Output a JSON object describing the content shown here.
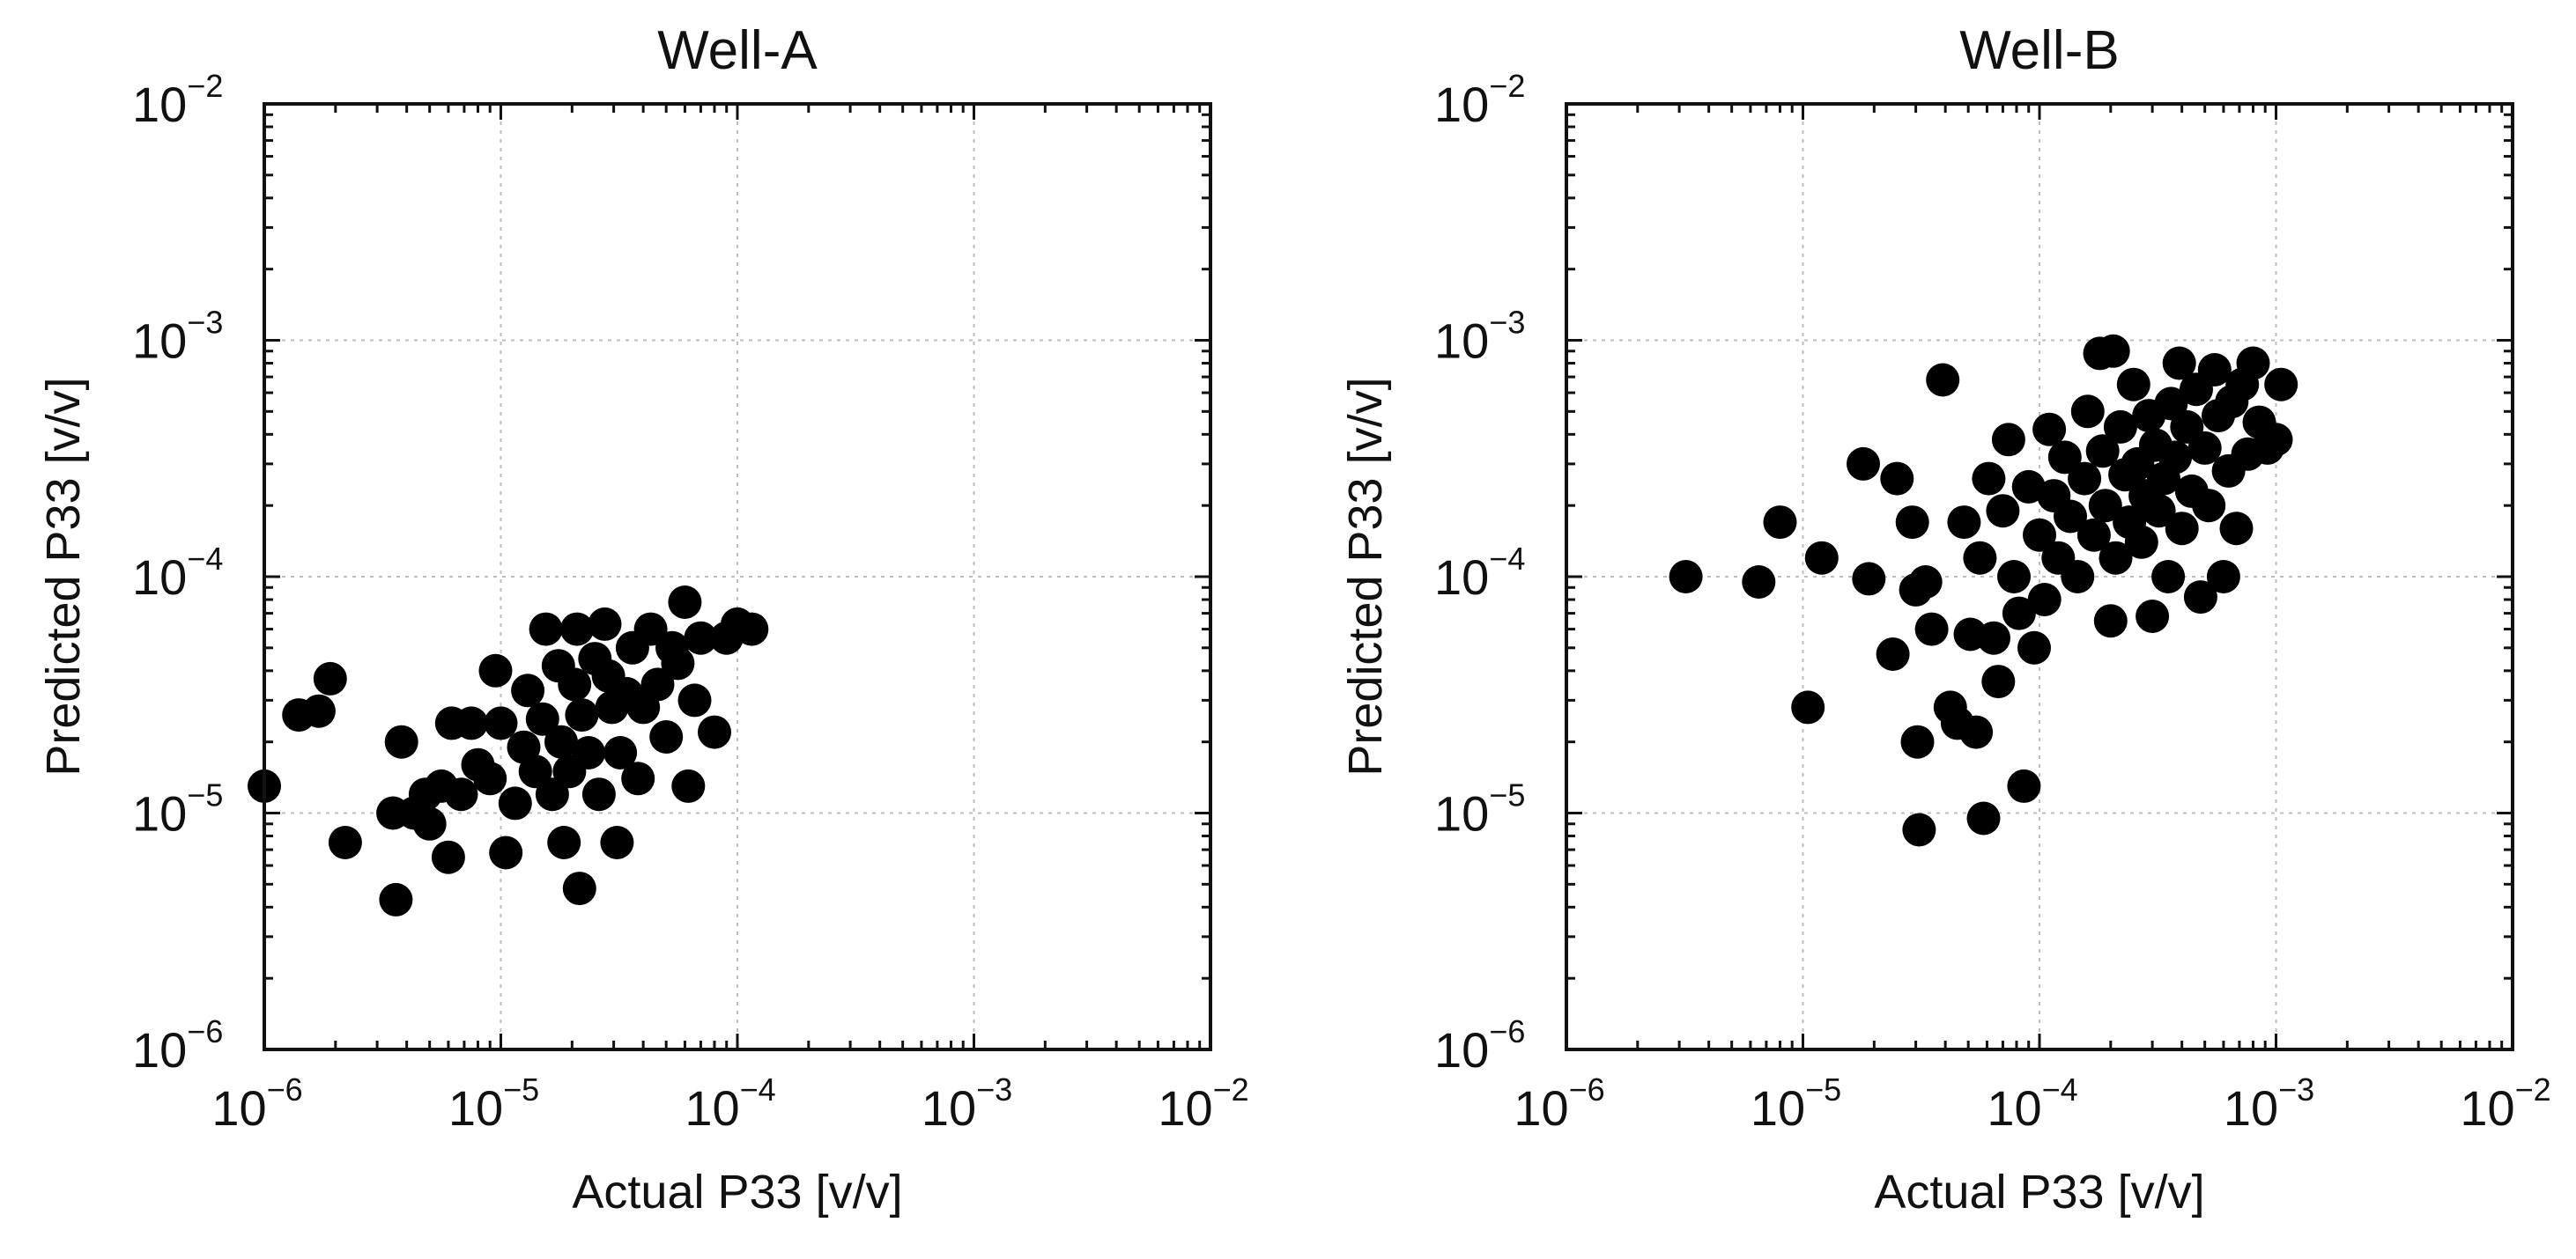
{
  "chart_data": [
    {
      "type": "scatter",
      "title": "Well-A",
      "xlabel": "Actual P33 [v/v]",
      "ylabel": "Predicted P33 [v/v]",
      "xscale": "log",
      "yscale": "log",
      "xlim": [
        1e-06,
        0.01
      ],
      "ylim": [
        1e-06,
        0.01
      ],
      "xticks": [
        {
          "base": "10",
          "exp": "−6"
        },
        {
          "base": "10",
          "exp": "−5"
        },
        {
          "base": "10",
          "exp": "−4"
        },
        {
          "base": "10",
          "exp": "−3"
        },
        {
          "base": "10",
          "exp": "−2"
        }
      ],
      "yticks": [
        {
          "base": "10",
          "exp": "−6"
        },
        {
          "base": "10",
          "exp": "−5"
        },
        {
          "base": "10",
          "exp": "−4"
        },
        {
          "base": "10",
          "exp": "−3"
        },
        {
          "base": "10",
          "exp": "−2"
        }
      ],
      "grid": true,
      "marker_color": "#000000",
      "points": [
        [
          1e-06,
          1.3e-05
        ],
        [
          1.4e-06,
          2.6e-05
        ],
        [
          1.7e-06,
          2.7e-05
        ],
        [
          1.9e-06,
          3.7e-05
        ],
        [
          2.2e-06,
          7.5e-06
        ],
        [
          3.5e-06,
          1e-05
        ],
        [
          3.6e-06,
          4.3e-06
        ],
        [
          3.8e-06,
          2e-05
        ],
        [
          4.3e-06,
          1e-05
        ],
        [
          4.8e-06,
          1.2e-05
        ],
        [
          5e-06,
          9e-06
        ],
        [
          5.6e-06,
          1.3e-05
        ],
        [
          6e-06,
          6.5e-06
        ],
        [
          6.2e-06,
          2.4e-05
        ],
        [
          6.8e-06,
          1.2e-05
        ],
        [
          7.5e-06,
          2.4e-05
        ],
        [
          8e-06,
          1.6e-05
        ],
        [
          9e-06,
          1.4e-05
        ],
        [
          9.5e-06,
          4e-05
        ],
        [
          1e-05,
          2.4e-05
        ],
        [
          1.05e-05,
          6.8e-06
        ],
        [
          1.15e-05,
          1.1e-05
        ],
        [
          1.25e-05,
          1.9e-05
        ],
        [
          1.3e-05,
          3.3e-05
        ],
        [
          1.4e-05,
          1.5e-05
        ],
        [
          1.5e-05,
          2.5e-05
        ],
        [
          1.55e-05,
          6e-05
        ],
        [
          1.65e-05,
          1.2e-05
        ],
        [
          1.75e-05,
          4.2e-05
        ],
        [
          1.8e-05,
          2e-05
        ],
        [
          1.85e-05,
          7.5e-06
        ],
        [
          1.95e-05,
          1.5e-05
        ],
        [
          2.05e-05,
          3.5e-05
        ],
        [
          2.1e-05,
          6e-05
        ],
        [
          2.15e-05,
          4.8e-06
        ],
        [
          2.2e-05,
          2.6e-05
        ],
        [
          2.35e-05,
          1.8e-05
        ],
        [
          2.5e-05,
          4.5e-05
        ],
        [
          2.6e-05,
          1.2e-05
        ],
        [
          2.75e-05,
          6.3e-05
        ],
        [
          2.85e-05,
          3.8e-05
        ],
        [
          2.95e-05,
          2.8e-05
        ],
        [
          3.1e-05,
          7.5e-06
        ],
        [
          3.2e-05,
          1.8e-05
        ],
        [
          3.4e-05,
          3.2e-05
        ],
        [
          3.6e-05,
          5e-05
        ],
        [
          3.8e-05,
          1.4e-05
        ],
        [
          4e-05,
          2.8e-05
        ],
        [
          4.3e-05,
          6e-05
        ],
        [
          4.6e-05,
          3.5e-05
        ],
        [
          5e-05,
          2.1e-05
        ],
        [
          5.3e-05,
          5e-05
        ],
        [
          5.6e-05,
          4.3e-05
        ],
        [
          6e-05,
          7.8e-05
        ],
        [
          6.2e-05,
          1.3e-05
        ],
        [
          6.6e-05,
          3e-05
        ],
        [
          7e-05,
          5.5e-05
        ],
        [
          8e-05,
          2.2e-05
        ],
        [
          9e-05,
          5.5e-05
        ],
        [
          0.0001,
          6.3e-05
        ],
        [
          0.000115,
          6e-05
        ]
      ]
    },
    {
      "type": "scatter",
      "title": "Well-B",
      "xlabel": "Actual P33 [v/v]",
      "ylabel": "Predicted P33 [v/v]",
      "xscale": "log",
      "yscale": "log",
      "xlim": [
        1e-06,
        0.01
      ],
      "ylim": [
        1e-06,
        0.01
      ],
      "xticks": [
        {
          "base": "10",
          "exp": "−6"
        },
        {
          "base": "10",
          "exp": "−5"
        },
        {
          "base": "10",
          "exp": "−4"
        },
        {
          "base": "10",
          "exp": "−3"
        },
        {
          "base": "10",
          "exp": "−2"
        }
      ],
      "yticks": [
        {
          "base": "10",
          "exp": "−6"
        },
        {
          "base": "10",
          "exp": "−5"
        },
        {
          "base": "10",
          "exp": "−4"
        },
        {
          "base": "10",
          "exp": "−3"
        },
        {
          "base": "10",
          "exp": "−2"
        }
      ],
      "grid": true,
      "marker_color": "#000000",
      "points": [
        [
          3.2e-06,
          0.0001
        ],
        [
          6.5e-06,
          9.5e-05
        ],
        [
          8e-06,
          0.00017
        ],
        [
          1.05e-05,
          2.8e-05
        ],
        [
          1.2e-05,
          0.00012
        ],
        [
          1.8e-05,
          0.0003
        ],
        [
          1.9e-05,
          9.8e-05
        ],
        [
          2.4e-05,
          4.7e-05
        ],
        [
          2.5e-05,
          0.00026
        ],
        [
          2.9e-05,
          0.00017
        ],
        [
          3e-05,
          8.8e-05
        ],
        [
          3.05e-05,
          2e-05
        ],
        [
          3.1e-05,
          8.5e-06
        ],
        [
          3.3e-05,
          9.5e-05
        ],
        [
          3.5e-05,
          6e-05
        ],
        [
          3.9e-05,
          0.00068
        ],
        [
          4.2e-05,
          2.8e-05
        ],
        [
          4.5e-05,
          2.4e-05
        ],
        [
          4.8e-05,
          0.00017
        ],
        [
          5.1e-05,
          5.7e-05
        ],
        [
          5.4e-05,
          2.2e-05
        ],
        [
          5.6e-05,
          0.00012
        ],
        [
          5.8e-05,
          9.5e-06
        ],
        [
          6.1e-05,
          0.00026
        ],
        [
          6.4e-05,
          5.5e-05
        ],
        [
          6.7e-05,
          3.6e-05
        ],
        [
          7e-05,
          0.00019
        ],
        [
          7.4e-05,
          0.00038
        ],
        [
          7.8e-05,
          0.0001
        ],
        [
          8.2e-05,
          7e-05
        ],
        [
          8.6e-05,
          1.3e-05
        ],
        [
          9e-05,
          0.00024
        ],
        [
          9.5e-05,
          5e-05
        ],
        [
          0.0001,
          0.00015
        ],
        [
          0.000105,
          8e-05
        ],
        [
          0.00011,
          0.00042
        ],
        [
          0.000115,
          0.00022
        ],
        [
          0.00012,
          0.00012
        ],
        [
          0.000128,
          0.00032
        ],
        [
          0.000135,
          0.00018
        ],
        [
          0.000145,
          0.0001
        ],
        [
          0.000155,
          0.00026
        ],
        [
          0.00016,
          0.0005
        ],
        [
          0.00017,
          0.00015
        ],
        [
          0.00018,
          0.00088
        ],
        [
          0.000185,
          0.00034
        ],
        [
          0.00019,
          0.0002
        ],
        [
          0.0002,
          6.5e-05
        ],
        [
          0.000205,
          0.0009
        ],
        [
          0.00021,
          0.00012
        ],
        [
          0.00022,
          0.00043
        ],
        [
          0.00023,
          0.00027
        ],
        [
          0.00024,
          0.00017
        ],
        [
          0.00025,
          0.00065
        ],
        [
          0.00026,
          0.0003
        ],
        [
          0.00027,
          0.00014
        ],
        [
          0.00028,
          0.00022
        ],
        [
          0.00029,
          0.00048
        ],
        [
          0.0003,
          6.8e-05
        ],
        [
          0.00031,
          0.00036
        ],
        [
          0.00032,
          0.00019
        ],
        [
          0.000335,
          0.00026
        ],
        [
          0.00035,
          0.0001
        ],
        [
          0.00036,
          0.00054
        ],
        [
          0.000375,
          0.00032
        ],
        [
          0.00039,
          0.0008
        ],
        [
          0.0004,
          0.00016
        ],
        [
          0.00042,
          0.00043
        ],
        [
          0.00044,
          0.00023
        ],
        [
          0.00046,
          0.00062
        ],
        [
          0.00048,
          8.2e-05
        ],
        [
          0.0005,
          0.00035
        ],
        [
          0.00052,
          0.0002
        ],
        [
          0.00055,
          0.00075
        ],
        [
          0.00057,
          0.00048
        ],
        [
          0.0006,
          0.0001
        ],
        [
          0.00063,
          0.00028
        ],
        [
          0.00065,
          0.00055
        ],
        [
          0.00068,
          0.00016
        ],
        [
          0.00072,
          0.00065
        ],
        [
          0.00076,
          0.00033
        ],
        [
          0.0008,
          0.0008
        ],
        [
          0.00085,
          0.00045
        ],
        [
          0.00092,
          0.00035
        ],
        [
          0.001,
          0.00038
        ],
        [
          0.00105,
          0.00065
        ]
      ]
    }
  ]
}
